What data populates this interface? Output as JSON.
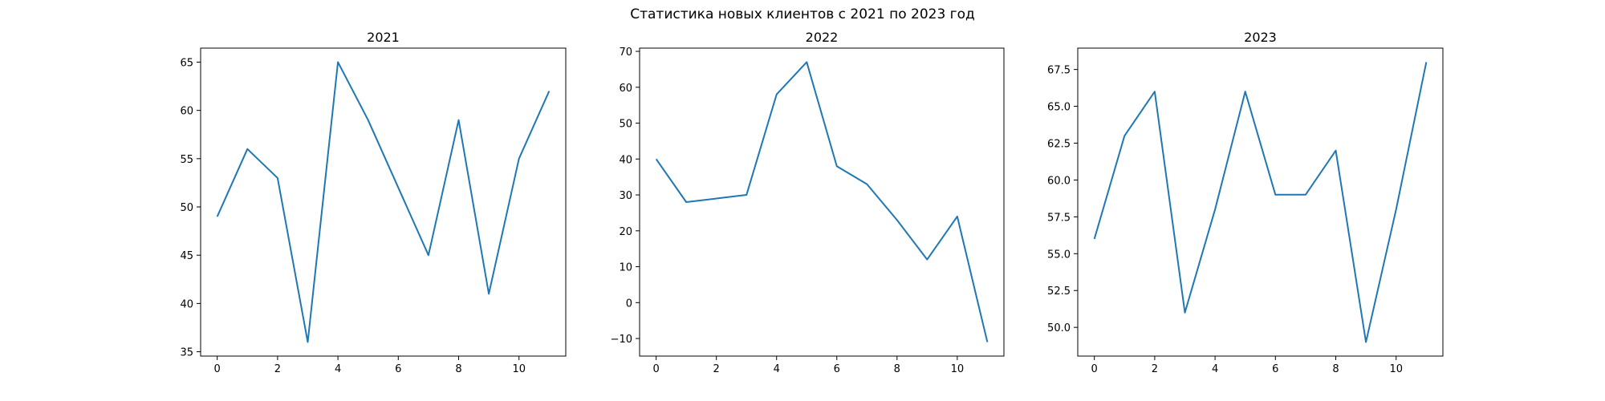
{
  "figure": {
    "title": "Статистика новых клиентов с 2021 по 2023 год"
  },
  "chart_data": [
    {
      "type": "line",
      "title": "2021",
      "xlabel": "",
      "ylabel": "",
      "x": [
        0,
        1,
        2,
        3,
        4,
        5,
        6,
        7,
        8,
        9,
        10,
        11
      ],
      "series": [
        {
          "values": [
            49,
            56,
            53,
            36,
            65,
            59,
            52,
            45,
            59,
            41,
            55,
            62
          ]
        }
      ],
      "xticks": [
        0,
        2,
        4,
        6,
        8,
        10
      ],
      "yticks": [
        35,
        40,
        45,
        50,
        55,
        60,
        65
      ],
      "ytick_labels": [
        "35",
        "40",
        "45",
        "50",
        "55",
        "60",
        "65"
      ],
      "xlim": [
        -0.55,
        11.55
      ],
      "ylim": [
        34.55,
        66.45
      ],
      "line_color": "#1f77b4",
      "grid": false
    },
    {
      "type": "line",
      "title": "2022",
      "xlabel": "",
      "ylabel": "",
      "x": [
        0,
        1,
        2,
        3,
        4,
        5,
        6,
        7,
        8,
        9,
        10,
        11
      ],
      "series": [
        {
          "values": [
            40,
            28,
            29,
            30,
            58,
            67,
            38,
            33,
            23,
            12,
            24,
            -11
          ]
        }
      ],
      "xticks": [
        0,
        2,
        4,
        6,
        8,
        10
      ],
      "yticks": [
        -10,
        0,
        10,
        20,
        30,
        40,
        50,
        60,
        70
      ],
      "ytick_labels": [
        "−10",
        "0",
        "10",
        "20",
        "30",
        "40",
        "50",
        "60",
        "70"
      ],
      "xlim": [
        -0.55,
        11.55
      ],
      "ylim": [
        -14.9,
        70.9
      ],
      "line_color": "#1f77b4",
      "grid": false
    },
    {
      "type": "line",
      "title": "2023",
      "xlabel": "",
      "ylabel": "",
      "x": [
        0,
        1,
        2,
        3,
        4,
        5,
        6,
        7,
        8,
        9,
        10,
        11
      ],
      "series": [
        {
          "values": [
            56,
            63,
            66,
            51,
            58,
            66,
            59,
            59,
            62,
            49,
            58,
            68
          ]
        }
      ],
      "xticks": [
        0,
        2,
        4,
        6,
        8,
        10
      ],
      "yticks": [
        50,
        52.5,
        55,
        57.5,
        60,
        62.5,
        65,
        67.5
      ],
      "ytick_labels": [
        "50.0",
        "52.5",
        "55.0",
        "57.5",
        "60.0",
        "62.5",
        "65.0",
        "67.5"
      ],
      "xlim": [
        -0.55,
        11.55
      ],
      "ylim": [
        48.05,
        68.95
      ],
      "line_color": "#1f77b4",
      "grid": false
    }
  ]
}
